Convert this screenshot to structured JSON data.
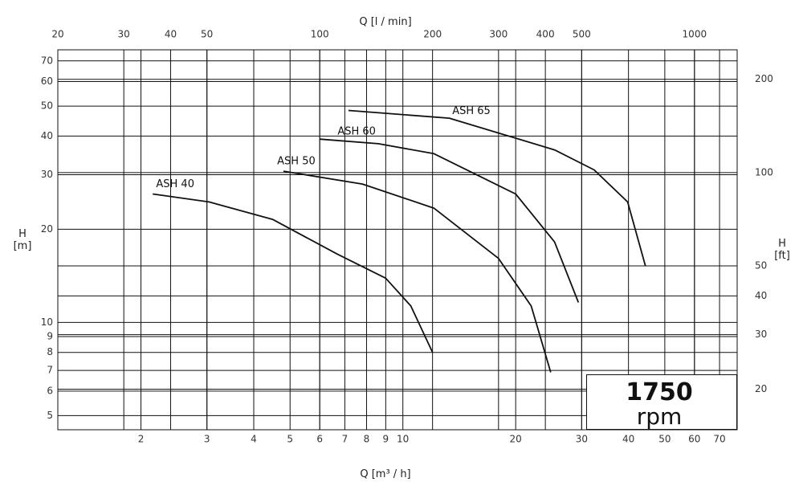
{
  "chart_data": {
    "type": "line",
    "x_label": "Q [m³ / h]",
    "x2_label": "Q [l / min]",
    "y_label": "H [m]",
    "y2_label": "H [ft]",
    "xlog": true,
    "ylog": true,
    "grid": true,
    "xlim": [
      1.2,
      78
    ],
    "xticks": [
      2,
      3,
      4,
      5,
      6,
      7,
      8,
      9,
      10,
      20,
      30,
      40,
      50,
      60,
      70
    ],
    "x2lim": [
      20,
      1300
    ],
    "x2ticks": [
      20,
      30,
      40,
      50,
      100,
      200,
      300,
      400,
      500,
      1000
    ],
    "ylim": [
      4.5,
      76
    ],
    "yticks": [
      5,
      6,
      7,
      8,
      9,
      10,
      20,
      30,
      40,
      50,
      60,
      70
    ],
    "y2lim": [
      14.8,
      249
    ],
    "y2ticks": [
      20,
      30,
      40,
      50,
      100,
      200
    ],
    "annotation": {
      "speed": "1750",
      "unit": "rpm"
    },
    "series": [
      {
        "name": "ASH 40",
        "color": "#111111",
        "x": [
          2.15,
          3.04,
          4.5,
          6.7,
          9,
          10.5,
          12
        ],
        "values": [
          26,
          24.5,
          21.5,
          16.6,
          13.9,
          11.3,
          8
        ]
      },
      {
        "name": "ASH 50",
        "color": "#111111",
        "x": [
          4.8,
          7.8,
          12.1,
          18,
          22,
          24.8
        ],
        "values": [
          30.8,
          28,
          23.4,
          16.1,
          11.3,
          6.9
        ]
      },
      {
        "name": "ASH 60",
        "color": "#111111",
        "x": [
          6,
          8.6,
          12.1,
          20,
          25.4,
          29.4
        ],
        "values": [
          39.1,
          37.8,
          35.1,
          26,
          18.2,
          11.6
        ]
      },
      {
        "name": "ASH 65",
        "color": "#111111",
        "x": [
          7.16,
          13.3,
          25.4,
          32.4,
          39.8,
          44.4
        ],
        "values": [
          48.4,
          45.7,
          36.1,
          31.1,
          24.5,
          15.2
        ]
      }
    ]
  }
}
